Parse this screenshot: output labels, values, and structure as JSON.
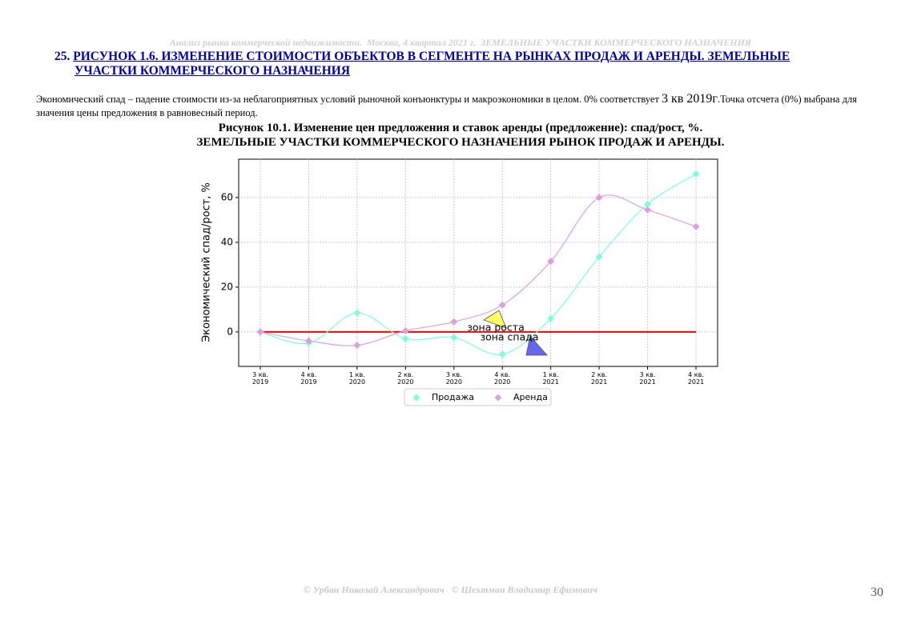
{
  "header": {
    "running_title": "Анализ рынка коммерческой недвижимости.  Москва, 4 квартал 2021 г.  ЗЕМЕЛЬНЫЕ УЧАСТКИ КОММЕРЧЕСКОГО НАЗНАЧЕНИЯ"
  },
  "section": {
    "number": "25.",
    "title": "РИСУНОК 1.6. ИЗМЕНЕНИЕ СТОИМОСТИ ОБЪЕКТОВ В СЕГМЕНТЕ НА РЫНКАХ ПРОДАЖ И АРЕНДЫ. ЗЕМЕЛЬНЫЕ УЧАСТКИ КОММЕРЧЕСКОГО НАЗНАЧЕНИЯ"
  },
  "paragraph": {
    "part1": "Экономический спад – падение стоимости из-за неблагоприятных условий рыночной конъюнктуры и макроэкономики в целом. 0% соответствует ",
    "part2": "3 кв 2019г",
    "part3": ".Точка отсчета (0%) выбрана для значения цены предложения в равновесный период."
  },
  "caption": {
    "line1": "Рисунок 10.1. Изменение цен предложения и ставок аренды (предложение): спад/рост, %.",
    "line2": "ЗЕМЕЛЬНЫЕ УЧАСТКИ КОММЕРЧЕСКОГО НАЗНАЧЕНИЯ РЫНОК ПРОДАЖ И АРЕНДЫ."
  },
  "chart_data": {
    "type": "line",
    "ylabel": "Экономический спад/рост, %",
    "categories": [
      "3 кв.\n2019",
      "4 кв.\n2019",
      "1 кв.\n2020",
      "2 кв.\n2020",
      "3 кв.\n2020",
      "4 кв.\n2020",
      "1 кв.\n2021",
      "2 кв.\n2021",
      "3 кв.\n2021",
      "4 кв.\n2021"
    ],
    "series": [
      {
        "name": "Продажа",
        "color": "#7fffd4",
        "values": [
          0,
          -5,
          8.5,
          -3,
          -2.5,
          -10,
          6,
          33.5,
          57,
          70.5
        ]
      },
      {
        "name": "Аренда",
        "color": "#dda0dd",
        "values": [
          0,
          -4,
          -6,
          0.5,
          4.5,
          12,
          31.5,
          60,
          54.5,
          47
        ]
      }
    ],
    "reference_line": {
      "value": 0,
      "color": "#ff0000"
    },
    "annotations": [
      {
        "text": "зона роста",
        "color": "#ffff66"
      },
      {
        "text": "зона спада",
        "color": "#6666ee"
      }
    ],
    "ylim": [
      -15.4,
      77.1
    ],
    "yticks": [
      0,
      20,
      40,
      60
    ],
    "grid": true,
    "legend": "bottom"
  },
  "footer": {
    "authors": "© Урбан Николай Александрович   © Шехтман Владимир Ефимович",
    "page": "30"
  }
}
